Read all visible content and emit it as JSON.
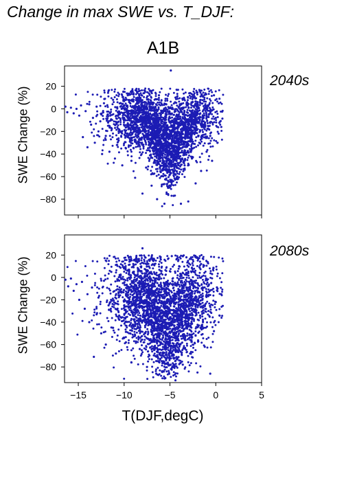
{
  "figure_title": "Change in max SWE vs. T_DJF:",
  "scenario": "A1B",
  "xlabel": "T(DJF,degC)",
  "colors": {
    "points": "#1c1cb4",
    "period_label": "#2a2ab0",
    "axis": "#000000"
  },
  "chart_data": [
    {
      "type": "scatter",
      "panel": "2040s",
      "period_label": "2040s",
      "ylabel": "SWE Change (%)",
      "xlim": [
        -16.5,
        5
      ],
      "ylim": [
        -94,
        38
      ],
      "xticks": [
        -15,
        -10,
        -5,
        0,
        5
      ],
      "xtick_labels": [
        "−15",
        "−10",
        "−5",
        "0",
        "5"
      ],
      "yticks": [
        20,
        0,
        -20,
        -40,
        -60,
        -80
      ],
      "ytick_labels": [
        "20",
        "0",
        "−20",
        "−40",
        "−60",
        "−80"
      ],
      "grid": false,
      "points": [
        [
          -16.4,
          2
        ],
        [
          -16.2,
          -3
        ],
        [
          -15.8,
          1
        ],
        [
          -15.5,
          -4
        ],
        [
          -15.2,
          0
        ],
        [
          -14.9,
          -6
        ],
        [
          -14.7,
          3
        ],
        [
          -14.5,
          -25
        ],
        [
          -14.2,
          -2
        ],
        [
          -14,
          -34
        ],
        [
          -13.8,
          4
        ],
        [
          -13.6,
          -14
        ],
        [
          -13.4,
          -8
        ],
        [
          -13.2,
          -30
        ],
        [
          -13,
          2
        ],
        [
          -12.8,
          -20
        ],
        [
          -12.6,
          -11
        ],
        [
          -12.4,
          -40
        ],
        [
          -12.2,
          5
        ],
        [
          -12,
          -24
        ],
        [
          -11.8,
          -5
        ],
        [
          -11.6,
          -38
        ],
        [
          -11.4,
          -17
        ],
        [
          -11.2,
          8
        ],
        [
          -11,
          -44
        ],
        [
          -10.8,
          -12
        ],
        [
          -10.6,
          -28
        ],
        [
          -10.4,
          2
        ],
        [
          -10.2,
          -50
        ],
        [
          -10,
          -8
        ],
        [
          -9.8,
          -35
        ],
        [
          -9.6,
          12
        ],
        [
          -9.4,
          -22
        ],
        [
          -9.2,
          -46
        ],
        [
          -9,
          -3
        ],
        [
          -8.8,
          -61
        ],
        [
          -8.6,
          15
        ],
        [
          -8.4,
          -30
        ],
        [
          -8.2,
          -14
        ],
        [
          -8,
          -75
        ],
        [
          -7.8,
          6
        ],
        [
          -7.6,
          -52
        ],
        [
          -7.4,
          -25
        ],
        [
          -7.2,
          16
        ],
        [
          -7,
          -68
        ],
        [
          -6.8,
          -40
        ],
        [
          -6.6,
          -9
        ],
        [
          -6.4,
          -80
        ],
        [
          -6.2,
          12
        ],
        [
          -6,
          -56
        ],
        [
          -5.8,
          -33
        ],
        [
          -5.6,
          -84
        ],
        [
          -5.4,
          4
        ],
        [
          -5.2,
          -70
        ],
        [
          -5,
          -47
        ],
        [
          -4.9,
          34
        ],
        [
          -4.8,
          -20
        ],
        [
          -4.6,
          -77
        ],
        [
          -4.4,
          10
        ],
        [
          -4.2,
          -60
        ],
        [
          -4,
          -36
        ],
        [
          -3.8,
          -84
        ],
        [
          -3.6,
          8
        ],
        [
          -3.4,
          -50
        ],
        [
          -3.2,
          -24
        ],
        [
          -3,
          -82
        ],
        [
          -2.8,
          14
        ],
        [
          -2.6,
          -44
        ],
        [
          -2.4,
          -12
        ],
        [
          -2.2,
          -66
        ],
        [
          -2,
          6
        ],
        [
          -1.8,
          -30
        ],
        [
          -1.6,
          -55
        ],
        [
          -1.4,
          11
        ],
        [
          -1.2,
          -18
        ],
        [
          -1,
          -38
        ],
        [
          -0.8,
          3
        ],
        [
          -0.6,
          -24
        ],
        [
          -0.4,
          -46
        ],
        [
          -0.2,
          12
        ],
        [
          0,
          -8
        ],
        [
          0.2,
          -30
        ],
        [
          0.4,
          9
        ],
        [
          0.6,
          -16
        ]
      ],
      "point_count_approx": 4000
    },
    {
      "type": "scatter",
      "panel": "2080s",
      "period_label": "2080s",
      "ylabel": "SWE Change (%)",
      "xlim": [
        -16.5,
        5
      ],
      "ylim": [
        -94,
        38
      ],
      "xticks": [
        -15,
        -10,
        -5,
        0,
        5
      ],
      "xtick_labels": [
        "−15",
        "−10",
        "−5",
        "0",
        "5"
      ],
      "yticks": [
        20,
        0,
        -20,
        -40,
        -60,
        -80
      ],
      "ytick_labels": [
        "20",
        "0",
        "−20",
        "−40",
        "−60",
        "−80"
      ],
      "grid": false,
      "points": [
        [
          -16.4,
          -2
        ],
        [
          -16.1,
          -8
        ],
        [
          -15.8,
          -1
        ],
        [
          -15.5,
          -12
        ],
        [
          -15.2,
          -6
        ],
        [
          -14.9,
          -20
        ],
        [
          -14.6,
          -4
        ],
        [
          -14.3,
          -28
        ],
        [
          -14,
          -15
        ],
        [
          -13.8,
          -40
        ],
        [
          -13.5,
          -9
        ],
        [
          -13.3,
          -71
        ],
        [
          -13,
          -33
        ],
        [
          -12.8,
          -18
        ],
        [
          -12.5,
          -50
        ],
        [
          -12.2,
          -3
        ],
        [
          -12,
          -60
        ],
        [
          -11.7,
          -25
        ],
        [
          -11.4,
          5
        ],
        [
          -11.2,
          -45
        ],
        [
          -10.9,
          -68
        ],
        [
          -10.6,
          -14
        ],
        [
          -10.3,
          -36
        ],
        [
          -10,
          8
        ],
        [
          -9.8,
          -58
        ],
        [
          -9.5,
          -22
        ],
        [
          -9.2,
          -76
        ],
        [
          -9,
          12
        ],
        [
          -8.8,
          -40
        ],
        [
          -8.5,
          -5
        ],
        [
          -8.3,
          -64
        ],
        [
          -8,
          26
        ],
        [
          -7.8,
          -30
        ],
        [
          -7.5,
          -80
        ],
        [
          -7.2,
          -12
        ],
        [
          -7,
          18
        ],
        [
          -6.8,
          -52
        ],
        [
          -6.5,
          -86
        ],
        [
          -6.2,
          -20
        ],
        [
          -6,
          16
        ],
        [
          -5.8,
          -44
        ],
        [
          -5.5,
          -90
        ],
        [
          -5.2,
          -8
        ],
        [
          -5,
          -66
        ],
        [
          -4.8,
          19
        ],
        [
          -4.6,
          -32
        ],
        [
          -4.4,
          -92
        ],
        [
          -4.2,
          -54
        ],
        [
          -4,
          10
        ],
        [
          -3.8,
          -24
        ],
        [
          -3.6,
          -78
        ],
        [
          -3.4,
          -46
        ],
        [
          -3.2,
          18
        ],
        [
          -3,
          -12
        ],
        [
          -2.8,
          -68
        ],
        [
          -2.6,
          -36
        ],
        [
          -2.4,
          5
        ],
        [
          -2.2,
          -52
        ],
        [
          -2,
          -85
        ],
        [
          -1.8,
          -18
        ],
        [
          -1.6,
          12
        ],
        [
          -1.4,
          -40
        ],
        [
          -1.2,
          -62
        ],
        [
          -1,
          -6
        ],
        [
          -0.8,
          -30
        ],
        [
          -0.6,
          -86
        ],
        [
          -0.4,
          3
        ],
        [
          -0.2,
          -48
        ],
        [
          0,
          -22
        ],
        [
          0.2,
          -10
        ],
        [
          0.4,
          -34
        ],
        [
          0.6,
          -15
        ]
      ],
      "point_count_approx": 4000
    }
  ]
}
